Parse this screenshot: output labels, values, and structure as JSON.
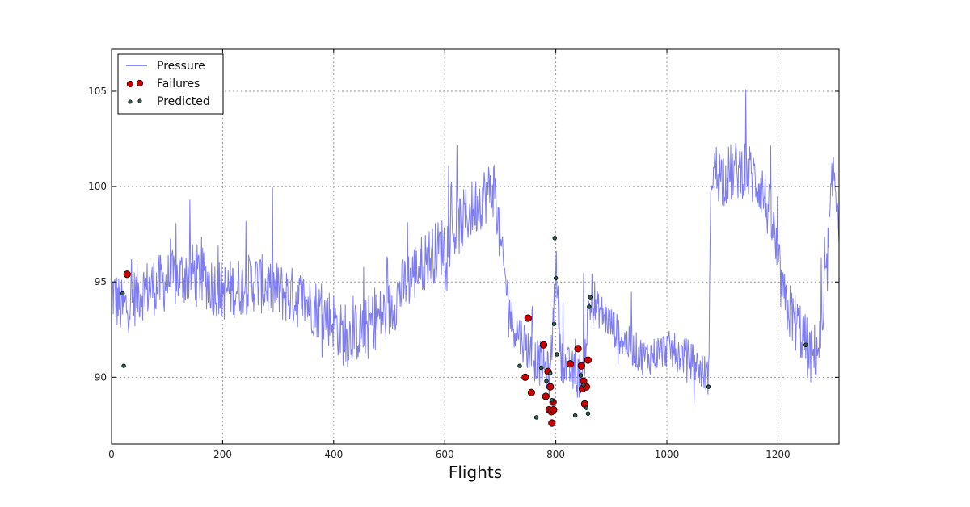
{
  "chart_data": {
    "type": "line",
    "title": "",
    "xlabel": "Flights",
    "ylabel": "",
    "xlim": [
      0,
      1310
    ],
    "ylim": [
      86.5,
      107.2
    ],
    "x_ticks": [
      0,
      200,
      400,
      600,
      800,
      1000,
      1200
    ],
    "y_ticks": [
      90,
      95,
      100,
      105
    ],
    "grid": true,
    "legend_position": "top-left",
    "series": [
      {
        "name": "Pressure",
        "style": "line",
        "color": "#6666ee",
        "x": [
          0,
          20,
          50,
          100,
          150,
          200,
          260,
          300,
          350,
          400,
          420,
          450,
          500,
          530,
          560,
          600,
          640,
          670,
          690,
          700,
          720,
          740,
          760,
          780,
          790,
          800,
          810,
          820,
          840,
          850,
          860,
          880,
          920,
          960,
          1000,
          1040,
          1075,
          1080,
          1100,
          1140,
          1170,
          1190,
          1210,
          1240,
          1260,
          1280,
          1300,
          1310
        ],
        "y": [
          94.5,
          93.5,
          94.5,
          95.0,
          95.5,
          94.5,
          95.0,
          94.5,
          94.0,
          93.0,
          92.0,
          92.5,
          93.5,
          95.0,
          96.0,
          97.0,
          98.5,
          99.5,
          100.0,
          97.0,
          93.0,
          92.0,
          91.0,
          90.5,
          90.0,
          96.0,
          91.0,
          90.5,
          90.0,
          90.5,
          93.8,
          93.5,
          92.0,
          91.0,
          91.5,
          91.0,
          90.0,
          101.0,
          100.5,
          101.0,
          100.0,
          98.0,
          94.0,
          92.5,
          91.0,
          92.0,
          101.0,
          98.5
        ]
      },
      {
        "name": "Failures",
        "style": "marker",
        "color": "#cc0000",
        "x": [
          28,
          750,
          745,
          756,
          778,
          782,
          786,
          788,
          790,
          792,
          793,
          795,
          796,
          826,
          840,
          846,
          848,
          850,
          852,
          855,
          858
        ],
        "y": [
          95.4,
          93.1,
          90.0,
          89.2,
          91.7,
          89.0,
          90.3,
          88.3,
          89.5,
          88.2,
          87.6,
          88.7,
          88.3,
          90.7,
          91.5,
          90.6,
          89.4,
          89.8,
          88.6,
          89.5,
          90.9
        ]
      },
      {
        "name": "Predicted",
        "style": "marker",
        "color": "#2e5e4e",
        "x": [
          20,
          22,
          735,
          765,
          774,
          783,
          790,
          793,
          797,
          798,
          800,
          802,
          835,
          845,
          850,
          855,
          858,
          860,
          862,
          1075,
          1250
        ],
        "y": [
          94.4,
          90.6,
          90.6,
          87.9,
          90.5,
          89.8,
          90.2,
          88.8,
          92.8,
          97.3,
          95.2,
          91.2,
          88.0,
          90.1,
          89.6,
          88.4,
          88.1,
          93.7,
          94.2,
          89.5,
          91.7
        ]
      }
    ]
  }
}
